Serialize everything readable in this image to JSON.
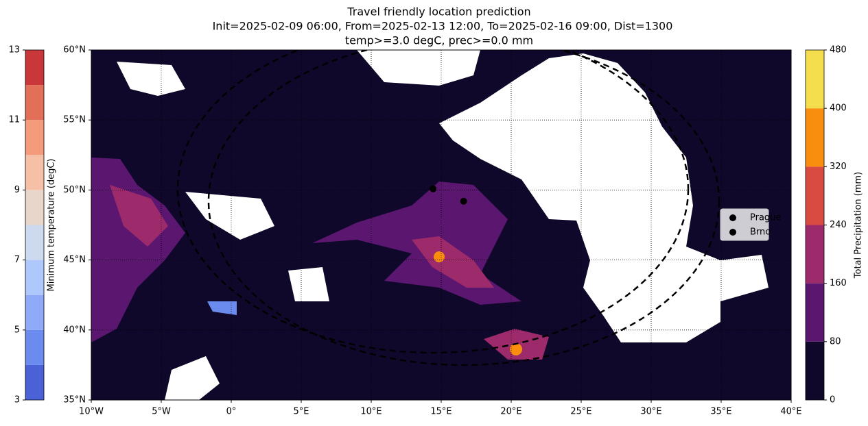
{
  "chart_data": {
    "type": "map",
    "title": [
      "Travel friendly location prediction",
      "Init=2025-02-09 06:00, From=2025-02-13 12:00, To=2025-02-16 09:00, Dist=1300",
      "temp>=3.0 degC, prec>=0.0 mm"
    ],
    "xlim": [
      -10,
      40
    ],
    "ylim": [
      35,
      60
    ],
    "xticks": [
      {
        "value": -10,
        "label": "10°W"
      },
      {
        "value": -5,
        "label": "5°W"
      },
      {
        "value": 0,
        "label": "0°"
      },
      {
        "value": 5,
        "label": "5°E"
      },
      {
        "value": 10,
        "label": "10°E"
      },
      {
        "value": 15,
        "label": "15°E"
      },
      {
        "value": 20,
        "label": "20°E"
      },
      {
        "value": 25,
        "label": "25°E"
      },
      {
        "value": 30,
        "label": "30°E"
      },
      {
        "value": 35,
        "label": "35°E"
      },
      {
        "value": 40,
        "label": "40°E"
      }
    ],
    "yticks": [
      {
        "value": 35,
        "label": "35°N"
      },
      {
        "value": 40,
        "label": "40°N"
      },
      {
        "value": 45,
        "label": "45°N"
      },
      {
        "value": 50,
        "label": "50°N"
      },
      {
        "value": 55,
        "label": "55°N"
      },
      {
        "value": 60,
        "label": "60°N"
      }
    ],
    "grid": true,
    "series": [
      {
        "name": "Prague",
        "color": "#000000",
        "x": [
          14.42
        ],
        "values": [
          50.08
        ]
      },
      {
        "name": "Brno",
        "color": "#000000",
        "x": [
          16.6
        ],
        "values": [
          49.2
        ]
      }
    ],
    "legend": "right",
    "colorbars": [
      {
        "label": "Minimum temperature (degC)",
        "side": "left",
        "levels": [
          3,
          4,
          5,
          6,
          7,
          8,
          9,
          10,
          11,
          12,
          13
        ],
        "colors": [
          "#4b62d6",
          "#6c8bef",
          "#8eaaf9",
          "#afc8fc",
          "#cdd9ee",
          "#e9d6cb",
          "#f5c0a5",
          "#f49b7b",
          "#e27059",
          "#c9373a"
        ],
        "ticks": [
          3,
          5,
          7,
          9,
          11,
          13
        ]
      },
      {
        "label": "Total Precipitation (mm)",
        "side": "right",
        "levels": [
          0,
          80,
          160,
          240,
          320,
          400,
          480
        ],
        "colors": [
          "#10082a",
          "#5b1670",
          "#9d2a6b",
          "#d94a40",
          "#f98e0e",
          "#f4de4e"
        ],
        "ticks": [
          0,
          80,
          160,
          240,
          320,
          400,
          480
        ]
      }
    ]
  }
}
